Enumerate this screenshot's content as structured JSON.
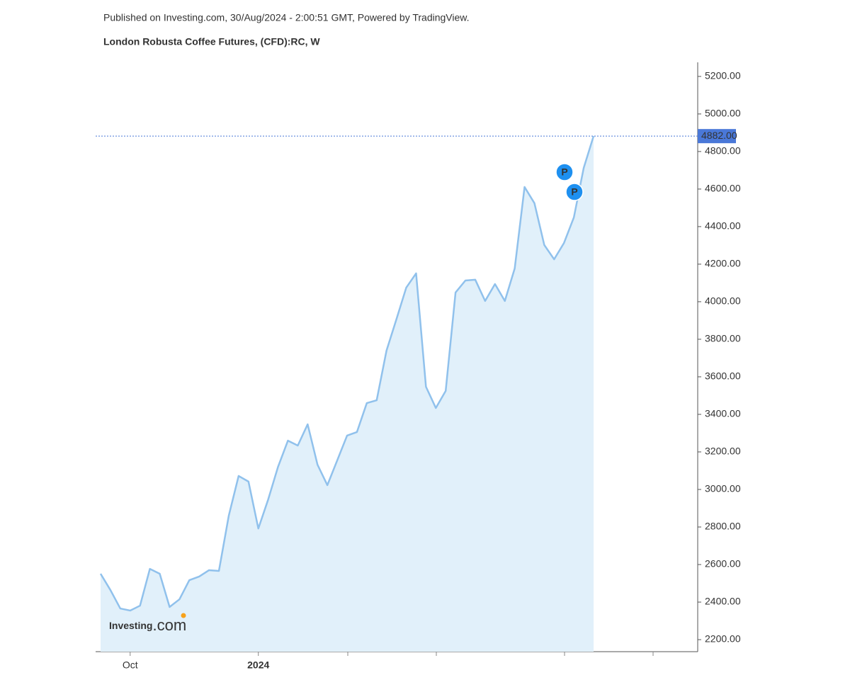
{
  "header": {
    "published": "Published on Investing.com, 30/Aug/2024 - 2:00:51 GMT, Powered by TradingView.",
    "title": "London Robusta Coffee Futures, (CFD):RC, W"
  },
  "logo": {
    "brand": "Investing",
    "suffix": ".com"
  },
  "chart_data": {
    "type": "area",
    "categories": [
      null,
      null,
      null,
      "Oct",
      null,
      null,
      null,
      null,
      null,
      null,
      null,
      null,
      null,
      null,
      null,
      null,
      "2024",
      null,
      null,
      null,
      null,
      null,
      null,
      null,
      null,
      null,
      null,
      null,
      null,
      null,
      null,
      null,
      null,
      null,
      null,
      null,
      null,
      null,
      null,
      null,
      null,
      null,
      null,
      null,
      null,
      null,
      null,
      null,
      null,
      null,
      null
    ],
    "series": [
      {
        "name": "RC",
        "color": "#90c1ec",
        "values": [
          2551,
          2464,
          2366,
          2355,
          2381,
          2577,
          2551,
          2374,
          2415,
          2517,
          2536,
          2570,
          2566,
          2860,
          3072,
          3042,
          2792,
          2947,
          3121,
          3260,
          3234,
          3347,
          3132,
          3023,
          3155,
          3287,
          3306,
          3460,
          3475,
          3740,
          3906,
          4075,
          4151,
          3547,
          3434,
          3525,
          4049,
          4113,
          4117,
          4004,
          4094,
          4004,
          4177,
          4611,
          4525,
          4302,
          4226,
          4313,
          4449,
          4713,
          4882
        ]
      }
    ],
    "ylim": [
      2136,
      5275
    ],
    "yticks": [
      {
        "value": 2200,
        "label": "2200.00"
      },
      {
        "value": 2400,
        "label": "2400.00"
      },
      {
        "value": 2600,
        "label": "2600.00"
      },
      {
        "value": 2800,
        "label": "2800.00"
      },
      {
        "value": 3000,
        "label": "3000.00"
      },
      {
        "value": 3200,
        "label": "3200.00"
      },
      {
        "value": 3400,
        "label": "3400.00"
      },
      {
        "value": 3600,
        "label": "3600.00"
      },
      {
        "value": 3800,
        "label": "3800.00"
      },
      {
        "value": 4000,
        "label": "4000.00"
      },
      {
        "value": 4200,
        "label": "4200.00"
      },
      {
        "value": 4400,
        "label": "4400.00"
      },
      {
        "value": 4600,
        "label": "4600.00"
      },
      {
        "value": 4800,
        "label": "4800.00"
      },
      {
        "value": 5000,
        "label": "5000.00"
      },
      {
        "value": 5200,
        "label": "5200.00"
      }
    ],
    "last_price": {
      "value": 4882,
      "label": "4882.00"
    },
    "annotations": [
      {
        "label": "P"
      },
      {
        "label": "P"
      }
    ]
  }
}
